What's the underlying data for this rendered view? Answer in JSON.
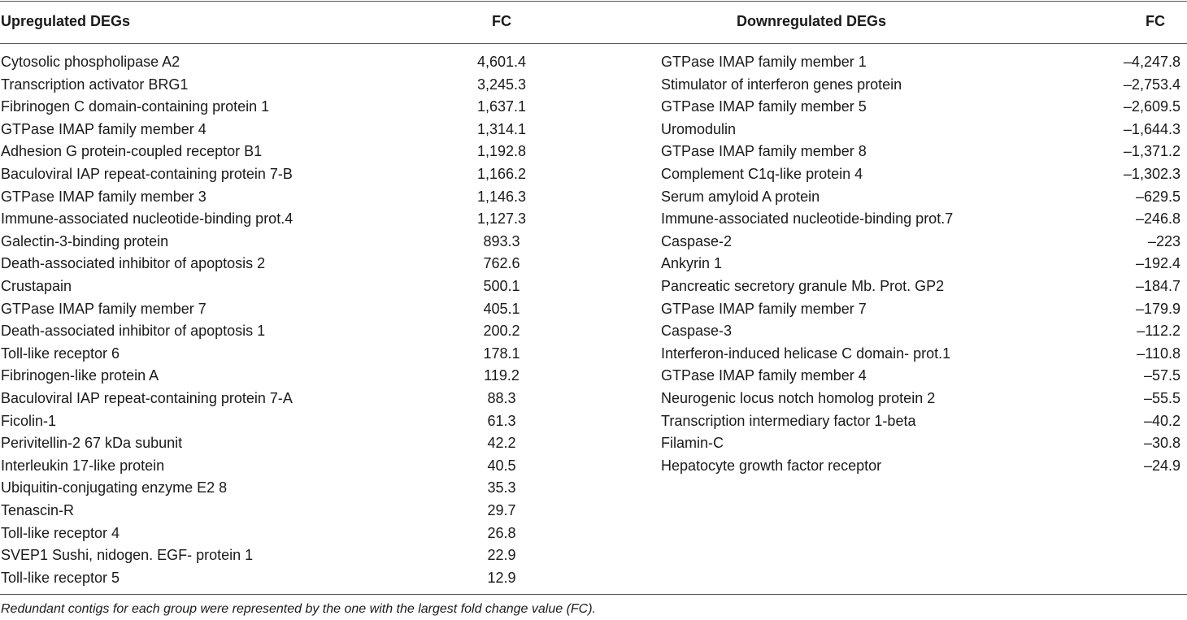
{
  "table": {
    "headers": {
      "up_name": "Upregulated DEGs",
      "up_fc": "FC",
      "down_name": "Downregulated DEGs",
      "down_fc": "FC"
    },
    "upregulated": [
      {
        "name": "Cytosolic phospholipase A2",
        "fc": "4,601.4"
      },
      {
        "name": "Transcription activator BRG1",
        "fc": "3,245.3"
      },
      {
        "name": "Fibrinogen C domain-containing protein 1",
        "fc": "1,637.1"
      },
      {
        "name": "GTPase IMAP family member 4",
        "fc": "1,314.1"
      },
      {
        "name": "Adhesion G protein-coupled receptor B1",
        "fc": "1,192.8"
      },
      {
        "name": "Baculoviral IAP repeat-containing protein 7-B",
        "fc": "1,166.2"
      },
      {
        "name": "GTPase IMAP family member 3",
        "fc": "1,146.3"
      },
      {
        "name": "Immune-associated nucleotide-binding prot.4",
        "fc": "1,127.3"
      },
      {
        "name": "Galectin-3-binding protein",
        "fc": "893.3"
      },
      {
        "name": "Death-associated inhibitor of apoptosis 2",
        "fc": "762.6"
      },
      {
        "name": "Crustapain",
        "fc": "500.1"
      },
      {
        "name": "GTPase IMAP family member 7",
        "fc": "405.1"
      },
      {
        "name": "Death-associated inhibitor of apoptosis 1",
        "fc": "200.2"
      },
      {
        "name": "Toll-like receptor 6",
        "fc": "178.1"
      },
      {
        "name": "Fibrinogen-like protein A",
        "fc": "119.2"
      },
      {
        "name": "Baculoviral IAP repeat-containing protein 7-A",
        "fc": "88.3"
      },
      {
        "name": "Ficolin-1",
        "fc": "61.3"
      },
      {
        "name": "Perivitellin-2 67 kDa subunit",
        "fc": "42.2"
      },
      {
        "name": "Interleukin 17-like protein",
        "fc": "40.5"
      },
      {
        "name": "Ubiquitin-conjugating enzyme E2 8",
        "fc": "35.3"
      },
      {
        "name": "Tenascin-R",
        "fc": "29.7"
      },
      {
        "name": "Toll-like receptor 4",
        "fc": "26.8"
      },
      {
        "name": "SVEP1 Sushi, nidogen. EGF- protein 1",
        "fc": "22.9"
      },
      {
        "name": "Toll-like receptor 5",
        "fc": "12.9"
      }
    ],
    "downregulated": [
      {
        "name": "GTPase IMAP family member 1",
        "fc": "–4,247.8"
      },
      {
        "name": "Stimulator of interferon genes protein",
        "fc": "–2,753.4"
      },
      {
        "name": "GTPase IMAP family member 5",
        "fc": "–2,609.5"
      },
      {
        "name": "Uromodulin",
        "fc": "–1,644.3"
      },
      {
        "name": "GTPase IMAP family member 8",
        "fc": "–1,371.2"
      },
      {
        "name": "Complement C1q-like protein 4",
        "fc": "–1,302.3"
      },
      {
        "name": "Serum amyloid A protein",
        "fc": "–629.5"
      },
      {
        "name": "Immune-associated nucleotide-binding prot.7",
        "fc": "–246.8"
      },
      {
        "name": "Caspase-2",
        "fc": "–223"
      },
      {
        "name": "Ankyrin 1",
        "fc": "–192.4"
      },
      {
        "name": "Pancreatic secretory granule Mb. Prot. GP2",
        "fc": "–184.7"
      },
      {
        "name": "GTPase IMAP family member 7",
        "fc": "–179.9"
      },
      {
        "name": "Caspase-3",
        "fc": "–112.2"
      },
      {
        "name": "Interferon-induced helicase C domain- prot.1",
        "fc": "–110.8"
      },
      {
        "name": "GTPase IMAP family member 4",
        "fc": "–57.5"
      },
      {
        "name": "Neurogenic locus notch homolog protein 2",
        "fc": "–55.5"
      },
      {
        "name": "Transcription intermediary factor 1-beta",
        "fc": "–40.2"
      },
      {
        "name": "Filamin-C",
        "fc": "–30.8"
      },
      {
        "name": "Hepatocyte growth factor receptor",
        "fc": "–24.9"
      }
    ],
    "footnote": "Redundant contigs for each group were represented by the one with the largest fold change value (FC)."
  }
}
